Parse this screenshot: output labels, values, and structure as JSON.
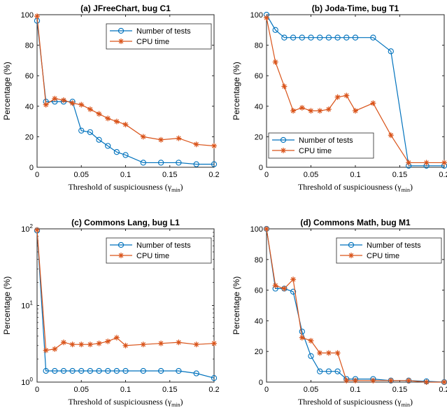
{
  "chart_data": [
    {
      "type": "line",
      "title": "(a) JFreeChart, bug C1",
      "xlabel": "Threshold of suspiciousness (γ",
      "xlabel_sub": "min",
      "xlabel_close": ")",
      "ylabel": "Percentage (%)",
      "xlim": [
        0,
        0.2
      ],
      "ylim": [
        0,
        100
      ],
      "yscale": "linear",
      "xticks": [
        0,
        0.05,
        0.1,
        0.15,
        0.2
      ],
      "xtick_labels": [
        "0",
        "0.05",
        "0.1",
        "0.15",
        "0.2"
      ],
      "yticks": [
        0,
        20,
        40,
        60,
        80,
        100
      ],
      "ytick_labels": [
        "0",
        "20",
        "40",
        "60",
        "80",
        "100"
      ],
      "legend": "top-right",
      "series": [
        {
          "name": "Number of tests",
          "color": "#0072bd",
          "marker": "circle",
          "x": [
            0,
            0.01,
            0.02,
            0.03,
            0.04,
            0.05,
            0.06,
            0.07,
            0.08,
            0.09,
            0.1,
            0.12,
            0.14,
            0.16,
            0.18,
            0.2
          ],
          "y": [
            96,
            43,
            43,
            43,
            43,
            24,
            23,
            18,
            14,
            10,
            8,
            3,
            3,
            3,
            2,
            2
          ]
        },
        {
          "name": "CPU time",
          "color": "#d95319",
          "marker": "star",
          "x": [
            0,
            0.01,
            0.02,
            0.03,
            0.04,
            0.05,
            0.06,
            0.07,
            0.08,
            0.09,
            0.1,
            0.12,
            0.14,
            0.16,
            0.18,
            0.2
          ],
          "y": [
            99,
            41,
            45,
            44,
            42,
            41,
            38,
            35,
            32,
            30,
            28,
            20,
            18,
            19,
            15,
            14
          ]
        }
      ]
    },
    {
      "type": "line",
      "title": "(b) Joda-Time, bug T1",
      "xlabel": "Threshold of suspiciousness (γ",
      "xlabel_sub": "min",
      "xlabel_close": ")",
      "ylabel": "Percentage (%)",
      "xlim": [
        0,
        0.2
      ],
      "ylim": [
        0,
        100
      ],
      "yscale": "linear",
      "xticks": [
        0,
        0.05,
        0.1,
        0.15,
        0.2
      ],
      "xtick_labels": [
        "0",
        "0.05",
        "0.1",
        "0.15",
        "0.2"
      ],
      "yticks": [
        0,
        20,
        40,
        60,
        80,
        100
      ],
      "ytick_labels": [
        "0",
        "20",
        "40",
        "60",
        "80",
        "100"
      ],
      "legend": "bottom-left",
      "series": [
        {
          "name": "Number of tests",
          "color": "#0072bd",
          "marker": "circle",
          "x": [
            0,
            0.01,
            0.02,
            0.03,
            0.04,
            0.05,
            0.06,
            0.07,
            0.08,
            0.09,
            0.1,
            0.12,
            0.14,
            0.16,
            0.18,
            0.2
          ],
          "y": [
            100,
            90,
            85,
            85,
            85,
            85,
            85,
            85,
            85,
            85,
            85,
            85,
            76,
            1,
            1,
            1
          ]
        },
        {
          "name": "CPU time",
          "color": "#d95319",
          "marker": "star",
          "x": [
            0,
            0.01,
            0.02,
            0.03,
            0.04,
            0.05,
            0.06,
            0.07,
            0.08,
            0.09,
            0.1,
            0.12,
            0.14,
            0.16,
            0.18,
            0.2
          ],
          "y": [
            98,
            69,
            53,
            37,
            39,
            37,
            37,
            38,
            46,
            47,
            37,
            42,
            21,
            3,
            3,
            3
          ]
        }
      ]
    },
    {
      "type": "line",
      "title": "(c) Commons Lang, bug L1",
      "xlabel": "Threshold of suspiciousness (γ",
      "xlabel_sub": "min",
      "xlabel_close": ")",
      "ylabel": "Percentage (%)",
      "xlim": [
        0,
        0.2
      ],
      "ylim": [
        1,
        100
      ],
      "yscale": "log",
      "xticks": [
        0,
        0.05,
        0.1,
        0.15,
        0.2
      ],
      "xtick_labels": [
        "0",
        "0.05",
        "0.1",
        "0.15",
        "0.2"
      ],
      "yticks": [
        1,
        10,
        100
      ],
      "ytick_labels": [
        "10^0",
        "10^1",
        "10^2"
      ],
      "ytick_base": "10",
      "ytick_exponents": [
        "0",
        "1",
        "2"
      ],
      "legend": "top-right",
      "series": [
        {
          "name": "Number of tests",
          "color": "#0072bd",
          "marker": "circle",
          "x": [
            0,
            0.01,
            0.02,
            0.03,
            0.04,
            0.05,
            0.06,
            0.07,
            0.08,
            0.09,
            0.1,
            0.12,
            0.14,
            0.16,
            0.18,
            0.2
          ],
          "y": [
            95,
            1.4,
            1.4,
            1.4,
            1.4,
            1.4,
            1.4,
            1.4,
            1.4,
            1.4,
            1.4,
            1.4,
            1.4,
            1.4,
            1.3,
            1.13
          ]
        },
        {
          "name": "CPU time",
          "color": "#d95319",
          "marker": "star",
          "x": [
            0,
            0.01,
            0.02,
            0.03,
            0.04,
            0.05,
            0.06,
            0.07,
            0.08,
            0.09,
            0.1,
            0.12,
            0.14,
            0.16,
            0.18,
            0.2
          ],
          "y": [
            97,
            2.6,
            2.7,
            3.3,
            3.1,
            3.1,
            3.1,
            3.2,
            3.4,
            3.8,
            3.0,
            3.1,
            3.2,
            3.3,
            3.1,
            3.2
          ]
        }
      ]
    },
    {
      "type": "line",
      "title": "(d) Commons Math, bug M1",
      "xlabel": "Threshold of suspiciousness (γ",
      "xlabel_sub": "min",
      "xlabel_close": ")",
      "ylabel": "Percentage (%)",
      "xlim": [
        0,
        0.2
      ],
      "ylim": [
        0,
        100
      ],
      "yscale": "linear",
      "xticks": [
        0,
        0.05,
        0.1,
        0.15,
        0.2
      ],
      "xtick_labels": [
        "0",
        "0.05",
        "0.1",
        "0.15",
        "0.2"
      ],
      "yticks": [
        0,
        20,
        40,
        60,
        80,
        100
      ],
      "ytick_labels": [
        "0",
        "20",
        "40",
        "60",
        "80",
        "100"
      ],
      "legend": "top-right",
      "series": [
        {
          "name": "Number of tests",
          "color": "#0072bd",
          "marker": "circle",
          "x": [
            0,
            0.01,
            0.02,
            0.03,
            0.04,
            0.05,
            0.06,
            0.07,
            0.08,
            0.09,
            0.1,
            0.12,
            0.14,
            0.16,
            0.18,
            0.2
          ],
          "y": [
            100,
            61,
            61,
            59,
            33,
            17,
            7,
            7,
            7,
            2,
            2,
            2,
            1,
            1,
            0.5,
            0
          ]
        },
        {
          "name": "CPU time",
          "color": "#d95319",
          "marker": "star",
          "x": [
            0,
            0.01,
            0.02,
            0.03,
            0.04,
            0.05,
            0.06,
            0.07,
            0.08,
            0.09,
            0.1,
            0.12,
            0.14,
            0.16,
            0.18,
            0.2
          ],
          "y": [
            100,
            63,
            61,
            67,
            29,
            27,
            19,
            19,
            19,
            1,
            1,
            1,
            1,
            1,
            0,
            0
          ]
        }
      ]
    }
  ]
}
